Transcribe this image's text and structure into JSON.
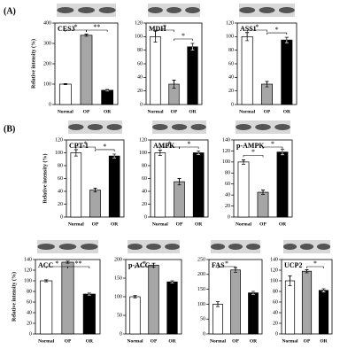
{
  "panel_labels": [
    "(A)",
    "(B)"
  ],
  "chart_data": [
    {
      "type": "bar",
      "title": "CES3",
      "ylabel": "Relative intensity (%)",
      "categories": [
        "Normal",
        "OP",
        "OR"
      ],
      "values": [
        100,
        340,
        70
      ],
      "errors": [
        3,
        5,
        4
      ],
      "colors": [
        "#ffffff",
        "#a6a6a6",
        "#000000"
      ],
      "ylim": [
        0,
        400
      ],
      "yticks": [
        0,
        100,
        200,
        300,
        400
      ],
      "annotations": [
        {
          "text": "*",
          "from": "Normal",
          "to": "OP"
        },
        {
          "text": "**",
          "from": "OP",
          "to": "OR"
        }
      ]
    },
    {
      "type": "bar",
      "title": "MDH",
      "categories": [
        "Normal",
        "OP",
        "OR"
      ],
      "values": [
        100,
        30,
        85
      ],
      "errors": [
        8,
        6,
        5
      ],
      "colors": [
        "#ffffff",
        "#a6a6a6",
        "#000000"
      ],
      "ylim": [
        0,
        120
      ],
      "yticks": [
        0,
        20,
        40,
        60,
        80,
        100,
        120
      ],
      "annotations": [
        {
          "text": "*",
          "from": "Normal",
          "to": "OP"
        },
        {
          "text": "*",
          "from": "OP",
          "to": "OR"
        }
      ]
    },
    {
      "type": "bar",
      "title": "ASS1",
      "categories": [
        "Normal",
        "OP",
        "OR"
      ],
      "values": [
        100,
        30,
        95
      ],
      "errors": [
        6,
        4,
        4
      ],
      "colors": [
        "#ffffff",
        "#a6a6a6",
        "#000000"
      ],
      "ylim": [
        0,
        120
      ],
      "yticks": [
        0,
        20,
        40,
        60,
        80,
        100,
        120
      ],
      "annotations": [
        {
          "text": "*",
          "from": "Normal",
          "to": "OP"
        },
        {
          "text": "*",
          "from": "OP",
          "to": "OR"
        }
      ]
    },
    {
      "type": "bar",
      "title": "CPT-1",
      "ylabel": "Relative intensity (%)",
      "categories": [
        "Normal",
        "OP",
        "OR"
      ],
      "values": [
        100,
        42,
        95
      ],
      "errors": [
        5,
        3,
        3
      ],
      "colors": [
        "#ffffff",
        "#a6a6a6",
        "#000000"
      ],
      "ylim": [
        0,
        120
      ],
      "yticks": [
        0,
        20,
        40,
        60,
        80,
        100,
        120
      ],
      "annotations": [
        {
          "text": "*",
          "from": "Normal",
          "to": "OP"
        },
        {
          "text": "*",
          "from": "OP",
          "to": "OR"
        }
      ]
    },
    {
      "type": "bar",
      "title": "AMPK",
      "categories": [
        "Normal",
        "OP",
        "OR"
      ],
      "values": [
        100,
        55,
        100
      ],
      "errors": [
        4,
        5,
        3
      ],
      "colors": [
        "#ffffff",
        "#a6a6a6",
        "#000000"
      ],
      "ylim": [
        0,
        120
      ],
      "yticks": [
        0,
        20,
        40,
        60,
        80,
        100,
        120
      ],
      "annotations": [
        {
          "text": "*",
          "from": "Normal",
          "to": "OP"
        },
        {
          "text": "*",
          "from": "OP",
          "to": "OR"
        }
      ]
    },
    {
      "type": "bar",
      "title": "p-AMPK",
      "categories": [
        "Normal",
        "OP",
        "OR"
      ],
      "values": [
        100,
        45,
        118
      ],
      "errors": [
        4,
        4,
        5
      ],
      "colors": [
        "#ffffff",
        "#a6a6a6",
        "#000000"
      ],
      "ylim": [
        0,
        140
      ],
      "yticks": [
        0,
        20,
        40,
        60,
        80,
        100,
        120,
        140
      ],
      "annotations": [
        {
          "text": "*",
          "from": "Normal",
          "to": "OP"
        },
        {
          "text": "*",
          "from": "OP",
          "to": "OR"
        }
      ]
    },
    {
      "type": "bar",
      "title": "ACC",
      "ylabel": "Relative intensity (%)",
      "categories": [
        "Normal",
        "OP",
        "OR"
      ],
      "values": [
        100,
        135,
        75
      ],
      "errors": [
        2,
        2,
        2
      ],
      "colors": [
        "#ffffff",
        "#a6a6a6",
        "#000000"
      ],
      "ylim": [
        0,
        140
      ],
      "yticks": [
        0,
        20,
        40,
        60,
        80,
        100,
        120,
        140
      ],
      "annotations": [
        {
          "text": "*",
          "from": "Normal",
          "to": "OP"
        },
        {
          "text": "**",
          "from": "OP",
          "to": "OR"
        }
      ]
    },
    {
      "type": "bar",
      "title": "p-ACC",
      "categories": [
        "Normal",
        "OP",
        "OR"
      ],
      "values": [
        100,
        185,
        140
      ],
      "errors": [
        3,
        5,
        3
      ],
      "colors": [
        "#ffffff",
        "#a6a6a6",
        "#000000"
      ],
      "ylim": [
        0,
        200
      ],
      "yticks": [
        0,
        50,
        100,
        150,
        200
      ],
      "annotations": [
        {
          "text": "*",
          "from": "Normal",
          "to": "OP"
        }
      ]
    },
    {
      "type": "bar",
      "title": "FAS",
      "categories": [
        "Normal",
        "OP",
        "OR"
      ],
      "values": [
        100,
        215,
        138
      ],
      "errors": [
        8,
        8,
        5
      ],
      "colors": [
        "#ffffff",
        "#a6a6a6",
        "#000000"
      ],
      "ylim": [
        0,
        250
      ],
      "yticks": [
        0,
        50,
        100,
        150,
        200,
        250
      ],
      "annotations": [
        {
          "text": "*",
          "from": "Normal",
          "to": "OP"
        }
      ]
    },
    {
      "type": "bar",
      "title": "UCP2",
      "categories": [
        "Normal",
        "OP",
        "OR"
      ],
      "values": [
        100,
        118,
        82
      ],
      "errors": [
        9,
        3,
        3
      ],
      "colors": [
        "#ffffff",
        "#a6a6a6",
        "#000000"
      ],
      "ylim": [
        0,
        140
      ],
      "yticks": [
        0,
        20,
        40,
        60,
        80,
        100,
        120,
        140
      ],
      "annotations": [
        {
          "text": "*",
          "from": "OP",
          "to": "OR"
        }
      ]
    }
  ]
}
